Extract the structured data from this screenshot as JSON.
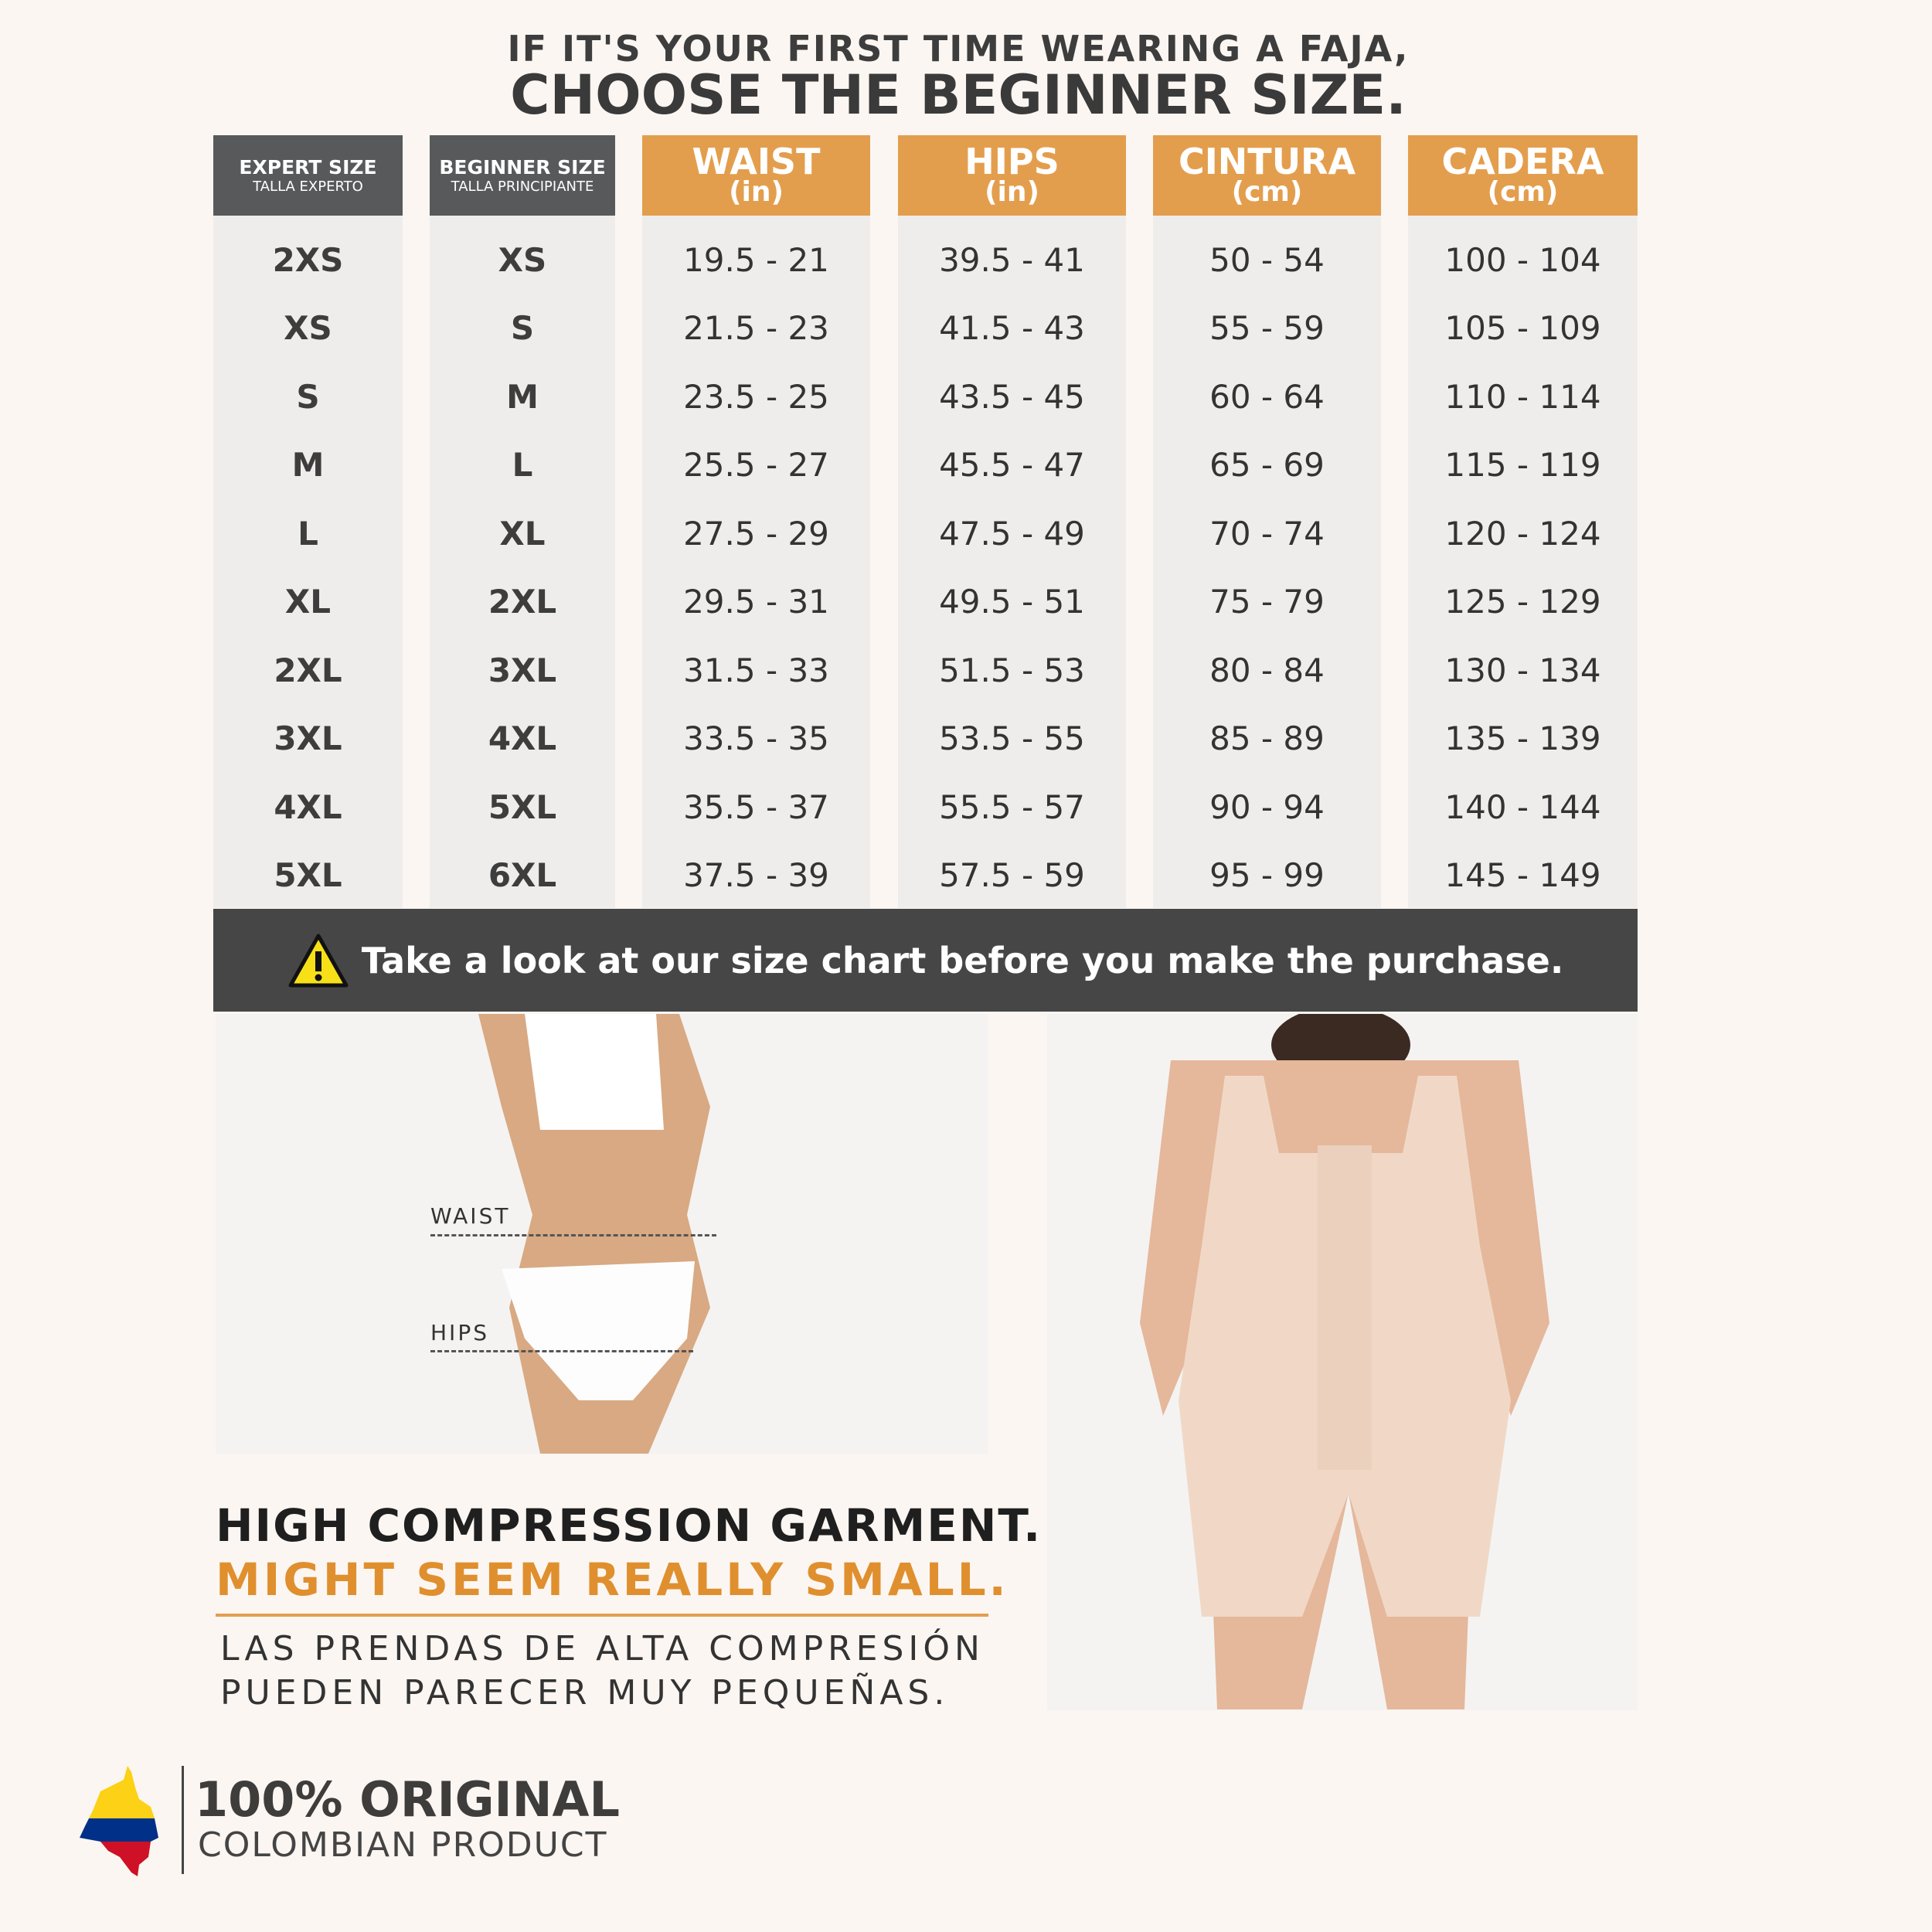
{
  "header": {
    "line1": "IF IT'S YOUR FIRST TIME WEARING A FAJA,",
    "line2": "CHOOSE THE BEGINNER SIZE."
  },
  "table": {
    "columns": [
      {
        "title": "EXPERT SIZE",
        "subtitle": "TALLA EXPERTO",
        "style": "dark"
      },
      {
        "title": "BEGINNER SIZE",
        "subtitle": "TALLA PRINCIPIANTE",
        "style": "dark"
      },
      {
        "title": "WAIST",
        "subtitle": "(in)",
        "style": "orange"
      },
      {
        "title": "HIPS",
        "subtitle": "(in)",
        "style": "orange"
      },
      {
        "title": "CINTURA",
        "subtitle": "(cm)",
        "style": "orange"
      },
      {
        "title": "CADERA",
        "subtitle": "(cm)",
        "style": "orange"
      }
    ],
    "rows": [
      [
        "2XS",
        "XS",
        "19.5 - 21",
        "39.5 - 41",
        "50 - 54",
        "100 - 104"
      ],
      [
        "XS",
        "S",
        "21.5 - 23",
        "41.5 - 43",
        "55 - 59",
        "105 - 109"
      ],
      [
        "S",
        "M",
        "23.5 - 25",
        "43.5 - 45",
        "60 - 64",
        "110 - 114"
      ],
      [
        "M",
        "L",
        "25.5 - 27",
        "45.5 - 47",
        "65 - 69",
        "115 - 119"
      ],
      [
        "L",
        "XL",
        "27.5 - 29",
        "47.5 - 49",
        "70 - 74",
        "120 - 124"
      ],
      [
        "XL",
        "2XL",
        "29.5 - 31",
        "49.5 - 51",
        "75 - 79",
        "125 - 129"
      ],
      [
        "2XL",
        "3XL",
        "31.5 - 33",
        "51.5 - 53",
        "80 - 84",
        "130 - 134"
      ],
      [
        "3XL",
        "4XL",
        "33.5 - 35",
        "53.5 - 55",
        "85 - 89",
        "135 - 139"
      ],
      [
        "4XL",
        "5XL",
        "35.5 - 37",
        "55.5 - 57",
        "90 - 94",
        "140 - 144"
      ],
      [
        "5XL",
        "6XL",
        "37.5 - 39",
        "57.5 - 59",
        "95 - 99",
        "145 - 149"
      ]
    ]
  },
  "banner": {
    "icon": "warning-icon",
    "text": "Take a look at our size chart before you make the purchase."
  },
  "measure_labels": {
    "waist": "WAIST",
    "hips": "HIPS"
  },
  "notice": {
    "line1": "HIGH COMPRESSION GARMENT.",
    "line2": "MIGHT SEEM REALLY SMALL.",
    "spanish1": "LAS PRENDAS DE ALTA COMPRESIÓN",
    "spanish2": "PUEDEN  PARECER  MUY  PEQUEÑAS."
  },
  "logo": {
    "line1": "100% ORIGINAL",
    "line2": "COLOMBIAN PRODUCT"
  },
  "colors": {
    "accent": "#e39e4d",
    "dark": "#58595b",
    "banner": "#464646",
    "text_orange": "#e08f2e"
  }
}
